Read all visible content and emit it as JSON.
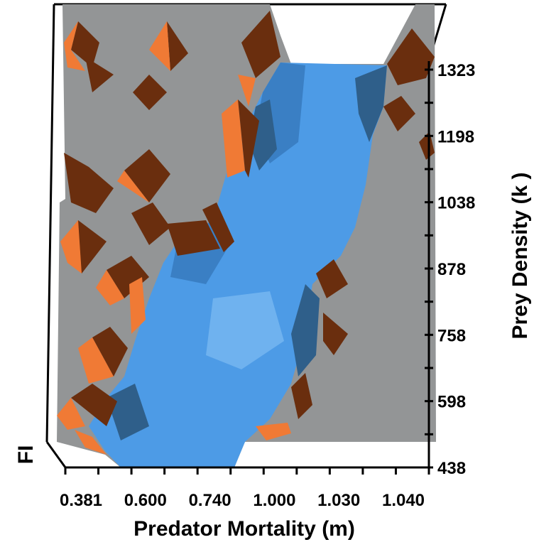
{
  "chart_data": {
    "type": "surface3d",
    "title": "",
    "xlabel": "Predator Mortality (m)",
    "ylabel": "Prey Density (k )",
    "zlabel": "FI",
    "x_ticks": [
      "0.381",
      "0.600",
      "0.740",
      "1.000",
      "1.030",
      "1.040"
    ],
    "y_ticks": [
      "438",
      "598",
      "758",
      "878",
      "1038",
      "1198",
      "1323"
    ],
    "colors": {
      "low_plane": "#939596",
      "surface_blue": "#4d9be6",
      "surface_blue_dark": "#2f5f8a",
      "peak_orange": "#f07a35",
      "peak_brown": "#6a2e0e",
      "axis": "#000000"
    }
  }
}
